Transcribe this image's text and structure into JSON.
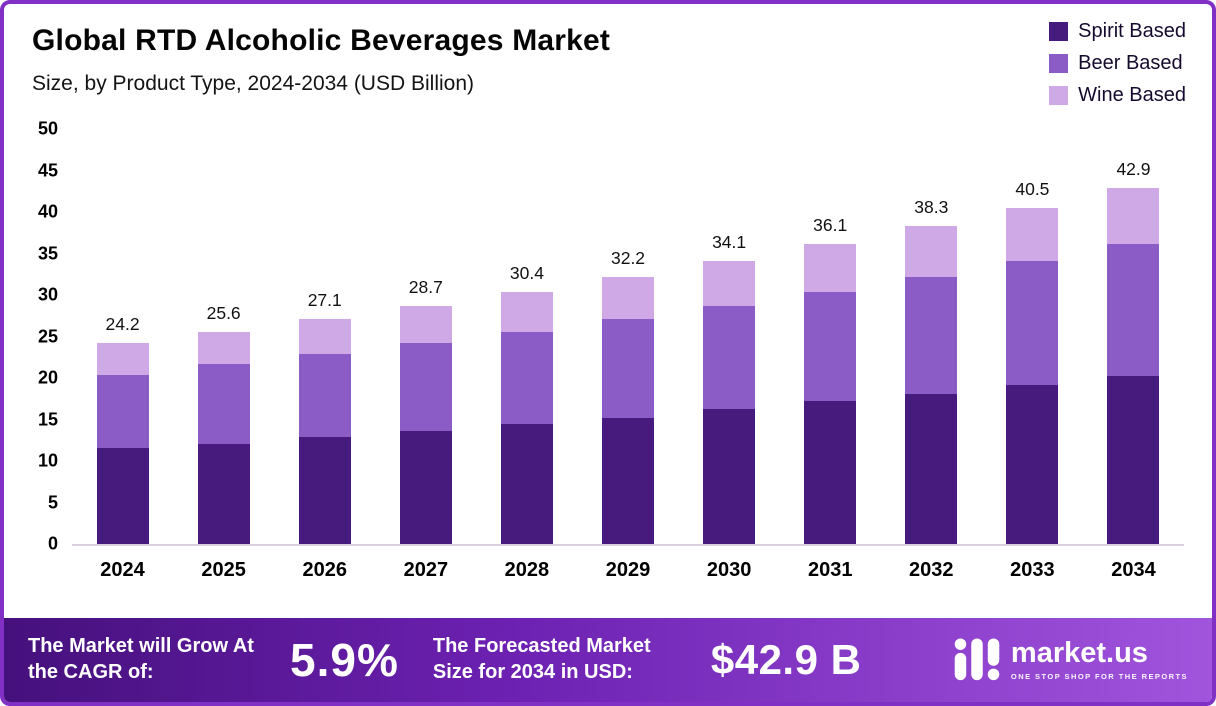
{
  "chart_data": {
    "type": "bar",
    "stacked": true,
    "title": "Global RTD Alcoholic Beverages Market",
    "subtitle": "Size, by Product Type, 2024-2034 (USD Billion)",
    "categories": [
      "2024",
      "2025",
      "2026",
      "2027",
      "2028",
      "2029",
      "2030",
      "2031",
      "2032",
      "2033",
      "2034"
    ],
    "series": [
      {
        "name": "Spirit Based",
        "color": "#471b7e",
        "values": [
          11.6,
          12.0,
          12.9,
          13.6,
          14.5,
          15.2,
          16.3,
          17.2,
          18.1,
          19.2,
          20.3
        ]
      },
      {
        "name": "Beer Based",
        "color": "#8b5cc6",
        "values": [
          8.8,
          9.7,
          10.0,
          10.6,
          11.0,
          11.9,
          12.4,
          13.2,
          14.1,
          14.9,
          15.8
        ]
      },
      {
        "name": "Wine Based",
        "color": "#cfa9e6",
        "values": [
          3.8,
          3.9,
          4.2,
          4.5,
          4.9,
          5.1,
          5.4,
          5.7,
          6.1,
          6.4,
          6.8
        ]
      }
    ],
    "totals": [
      24.2,
      25.6,
      27.1,
      28.7,
      30.4,
      32.2,
      34.1,
      36.1,
      38.3,
      40.5,
      42.9
    ],
    "ylim": [
      0,
      50
    ],
    "yticks": [
      0,
      5,
      10,
      15,
      20,
      25,
      30,
      35,
      40,
      45,
      50
    ],
    "grid": false,
    "legend_position": "top-right",
    "xlabel": "",
    "ylabel": ""
  },
  "footer": {
    "cagr_label": "The Market will Grow At the CAGR of:",
    "cagr_value": "5.9%",
    "forecast_label": "The Forecasted Market Size for 2034 in USD:",
    "forecast_value": "$42.9 B",
    "brand": "market.us",
    "brand_tagline": "ONE STOP SHOP FOR THE REPORTS"
  },
  "colors": {
    "frame_border": "#8130c6",
    "footer_gradient": [
      "#45107c",
      "#a155dd"
    ],
    "axis_line": "#d8d0e0",
    "background": "#ffffff"
  }
}
